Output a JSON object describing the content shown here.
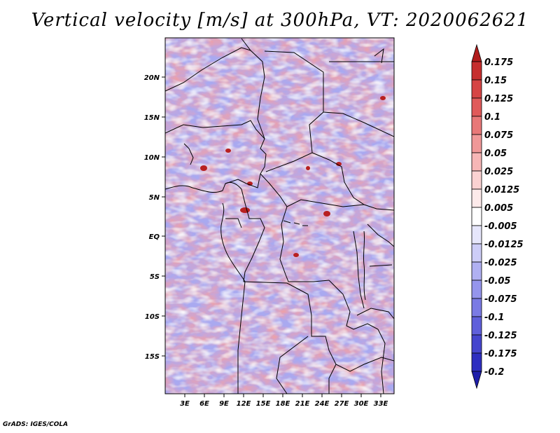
{
  "title": "Vertical velocity [m/s] at 300hPa, VT: 2020062621",
  "credit": "GrADS: IGES/COLA",
  "map": {
    "lat_labels": [
      "20N",
      "15N",
      "10N",
      "5N",
      "EQ",
      "5S",
      "10S",
      "15S"
    ],
    "lon_labels": [
      "3E",
      "6E",
      "9E",
      "12E",
      "15E",
      "18E",
      "21E",
      "24E",
      "27E",
      "30E",
      "33E"
    ]
  },
  "colorbar": {
    "labels": [
      "0.175",
      "0.15",
      "0.125",
      "0.1",
      "0.075",
      "0.05",
      "0.025",
      "0.0125",
      "0.005",
      "-0.005",
      "-0.0125",
      "-0.025",
      "-0.05",
      "-0.075",
      "-0.1",
      "-0.125",
      "-0.175",
      "-0.2"
    ],
    "colors": [
      "#b11c1c",
      "#c62e2e",
      "#d64545",
      "#e05a5a",
      "#e87878",
      "#f09898",
      "#f6b6b6",
      "#fad2d2",
      "#fdeaea",
      "#ffffff",
      "#e6e6fb",
      "#cdcdf7",
      "#b0b0f2",
      "#9595ec",
      "#7a7ae4",
      "#5f5fdb",
      "#4545ce",
      "#2e2ec0",
      "#1e1eaa"
    ]
  }
}
